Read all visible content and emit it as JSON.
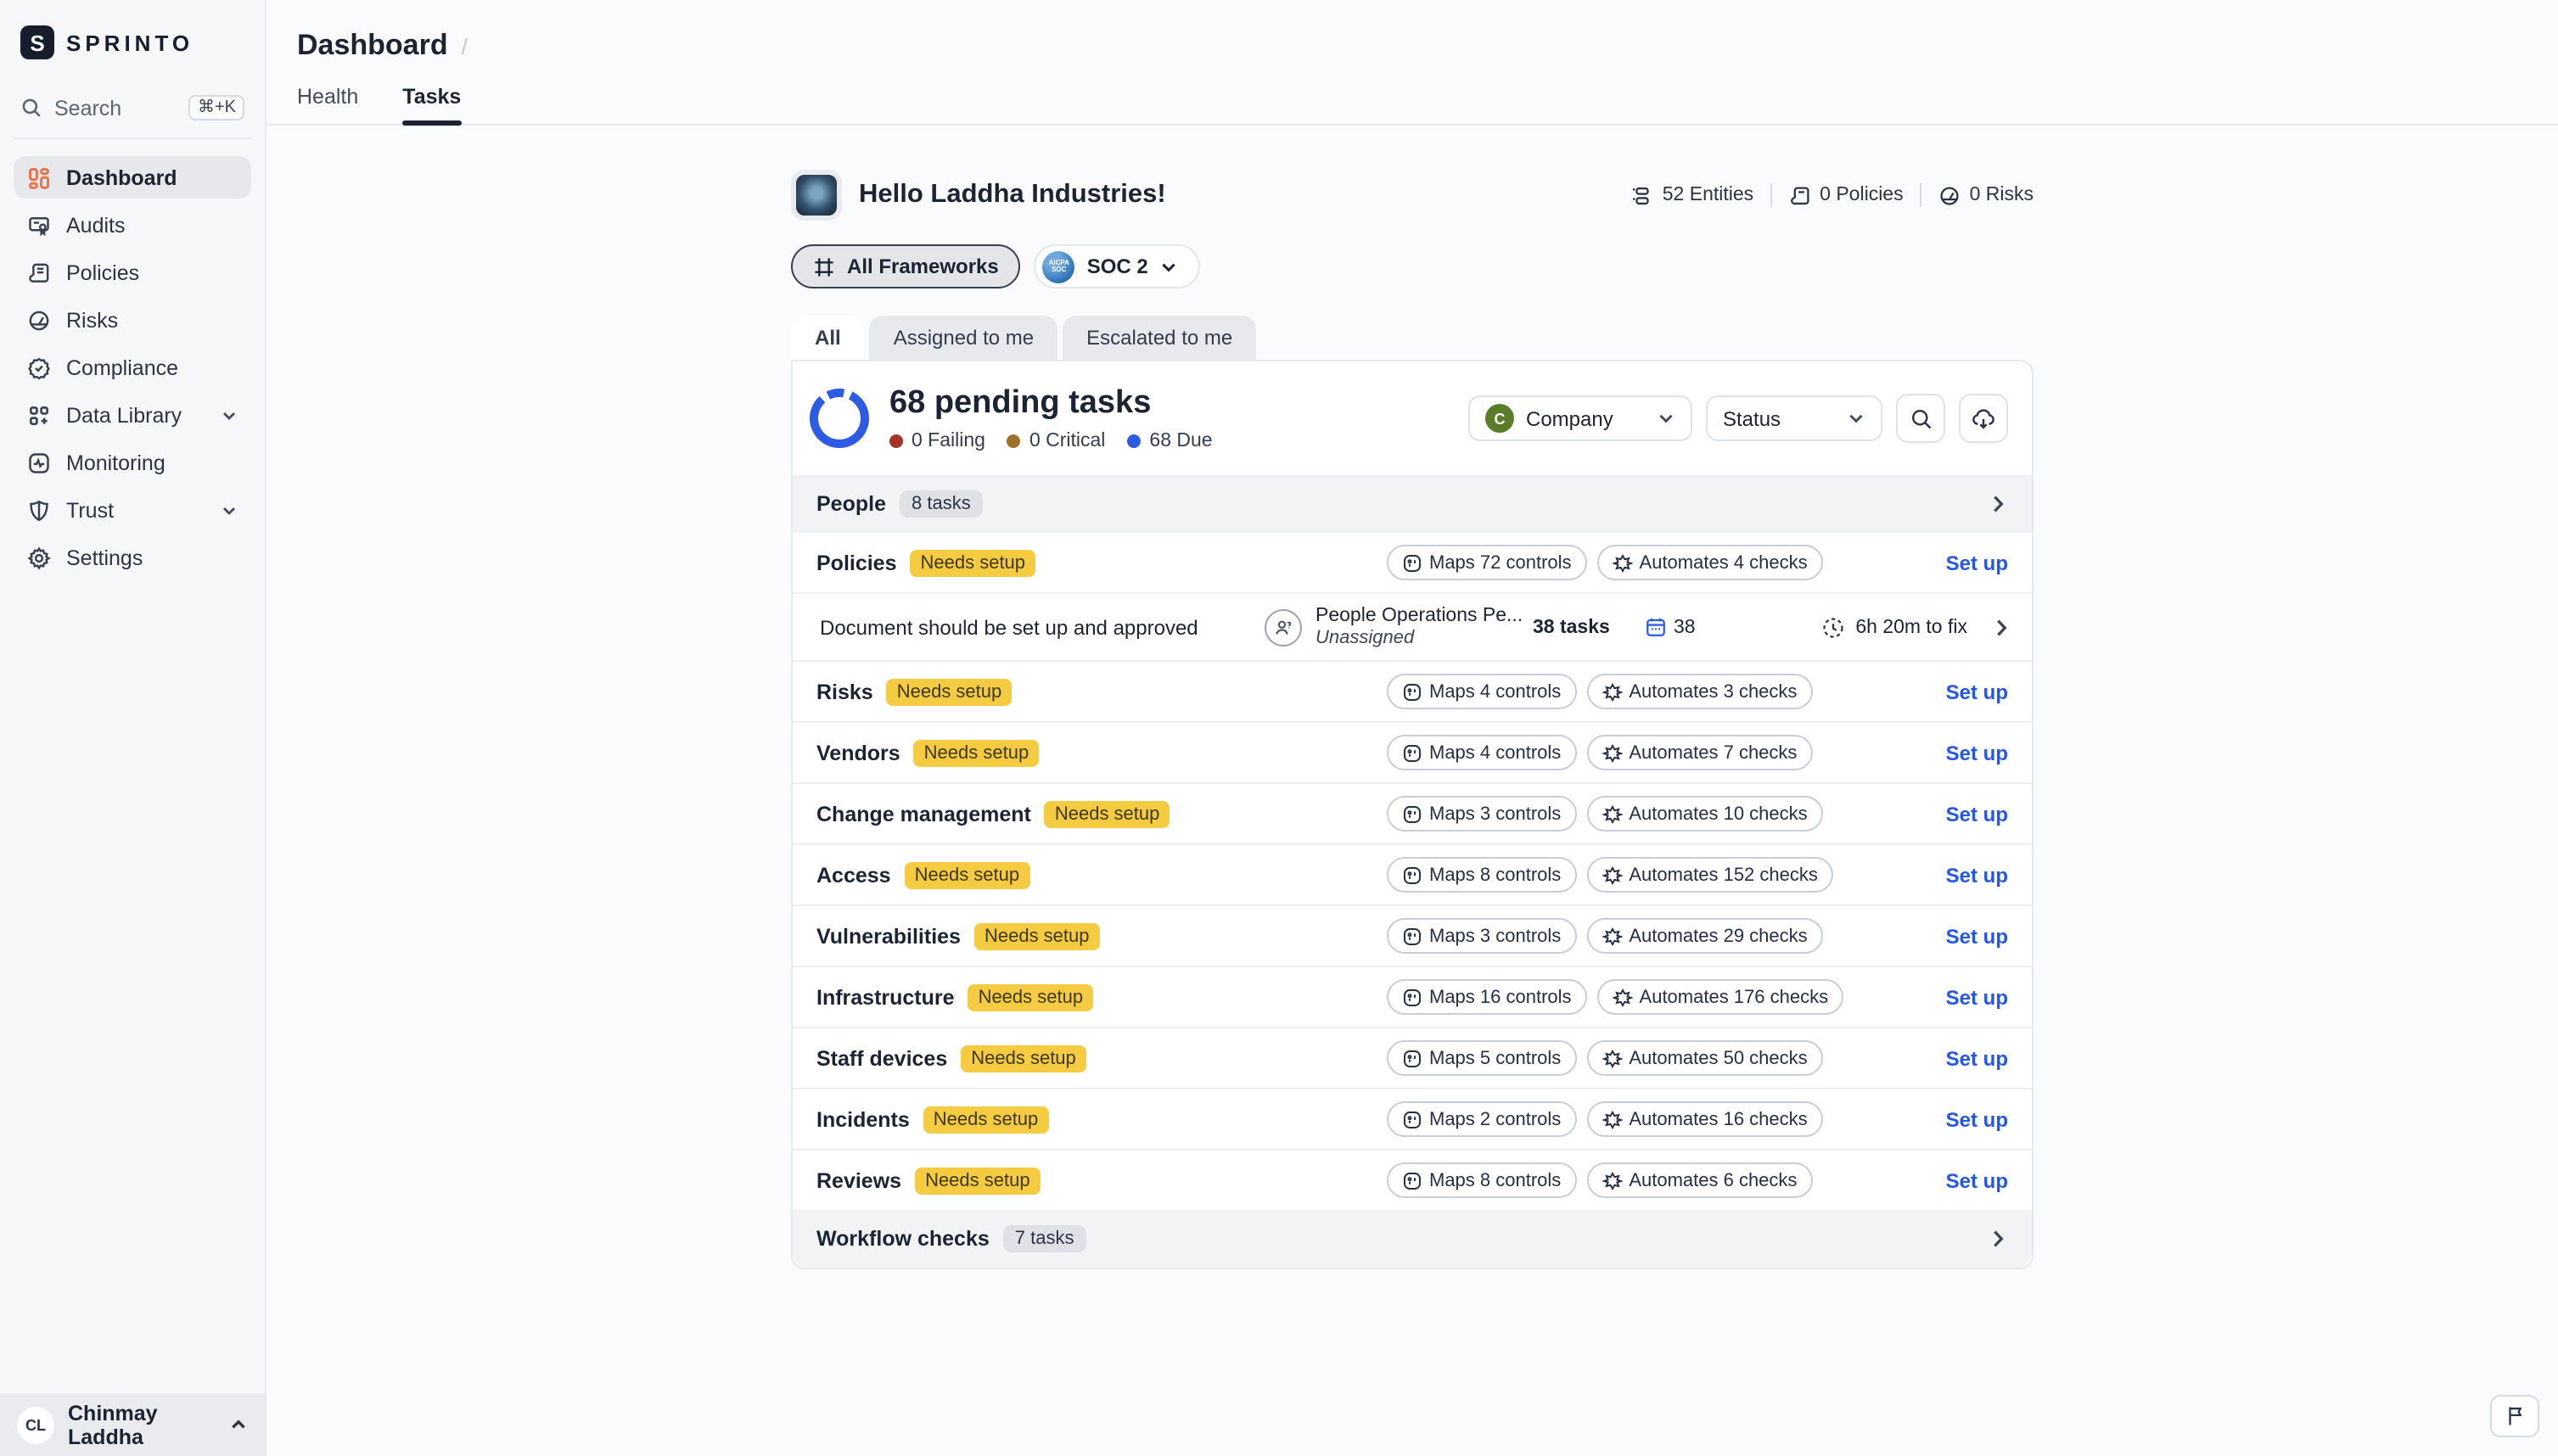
{
  "brand": {
    "wordmark": "SPRINTO",
    "logo_letter": "S"
  },
  "sidebar": {
    "search": {
      "label": "Search",
      "shortcut": "⌘+K"
    },
    "items": [
      {
        "label": "Dashboard",
        "active": true
      },
      {
        "label": "Audits"
      },
      {
        "label": "Policies"
      },
      {
        "label": "Risks"
      },
      {
        "label": "Compliance"
      },
      {
        "label": "Data Library",
        "expandable": true
      },
      {
        "label": "Monitoring"
      },
      {
        "label": "Trust",
        "expandable": true
      },
      {
        "label": "Settings"
      }
    ],
    "user": {
      "initials": "CL",
      "name": "Chinmay Laddha"
    }
  },
  "header": {
    "title": "Dashboard",
    "breadcrumb_separator": "/",
    "tabs": [
      {
        "label": "Health",
        "active": false
      },
      {
        "label": "Tasks",
        "active": true
      }
    ]
  },
  "main": {
    "greeting": "Hello Laddha Industries!",
    "stats": [
      {
        "label": "52 Entities"
      },
      {
        "label": "0 Policies"
      },
      {
        "label": "0 Risks"
      }
    ],
    "framework_filter": {
      "all_label": "All Frameworks",
      "selected_label": "SOC 2",
      "selected_badge_text": "AICPA SOC"
    },
    "scope_tabs": [
      {
        "label": "All",
        "active": true
      },
      {
        "label": "Assigned to me",
        "active": false
      },
      {
        "label": "Escalated to me",
        "active": false
      }
    ],
    "summary": {
      "title": "68 pending tasks",
      "legend": [
        {
          "label": "0 Failing",
          "color": "#a93226"
        },
        {
          "label": "0 Critical",
          "color": "#a2702a"
        },
        {
          "label": "68 Due",
          "color": "#2d5be3"
        }
      ],
      "donut_color": "#2d5be3"
    },
    "filters": {
      "company": {
        "label": "Company",
        "avatar_letter": "C",
        "avatar_color": "#5b7c29"
      },
      "status": {
        "label": "Status"
      }
    },
    "groups": {
      "people": {
        "label": "People",
        "badge": "8 tasks"
      },
      "workflow": {
        "label": "Workflow checks",
        "badge": "7 tasks"
      }
    },
    "task_row": {
      "title": "Document should be set up and approved",
      "policy": "People Operations Pe...",
      "assignee": "Unassigned",
      "tasks": "38 tasks",
      "due_count": "38",
      "fix_time": "6h 20m to fix"
    },
    "categories": [
      {
        "name": "Policies",
        "badge": "Needs setup",
        "maps": "Maps 72 controls",
        "automates": "Automates 4 checks",
        "action": "Set up"
      },
      {
        "name": "Risks",
        "badge": "Needs setup",
        "maps": "Maps 4 controls",
        "automates": "Automates 3 checks",
        "action": "Set up"
      },
      {
        "name": "Vendors",
        "badge": "Needs setup",
        "maps": "Maps 4 controls",
        "automates": "Automates 7 checks",
        "action": "Set up"
      },
      {
        "name": "Change management",
        "badge": "Needs setup",
        "maps": "Maps 3 controls",
        "automates": "Automates 10 checks",
        "action": "Set up"
      },
      {
        "name": "Access",
        "badge": "Needs setup",
        "maps": "Maps 8 controls",
        "automates": "Automates 152 checks",
        "action": "Set up"
      },
      {
        "name": "Vulnerabilities",
        "badge": "Needs setup",
        "maps": "Maps 3 controls",
        "automates": "Automates 29 checks",
        "action": "Set up"
      },
      {
        "name": "Infrastructure",
        "badge": "Needs setup",
        "maps": "Maps 16 controls",
        "automates": "Automates 176 checks",
        "action": "Set up"
      },
      {
        "name": "Staff devices",
        "badge": "Needs setup",
        "maps": "Maps 5 controls",
        "automates": "Automates 50 checks",
        "action": "Set up"
      },
      {
        "name": "Incidents",
        "badge": "Needs setup",
        "maps": "Maps 2 controls",
        "automates": "Automates 16 checks",
        "action": "Set up"
      },
      {
        "name": "Reviews",
        "badge": "Needs setup",
        "maps": "Maps 8 controls",
        "automates": "Automates 6 checks",
        "action": "Set up"
      }
    ],
    "badge_color": "#f5cb42",
    "action_color": "#2456e8"
  }
}
